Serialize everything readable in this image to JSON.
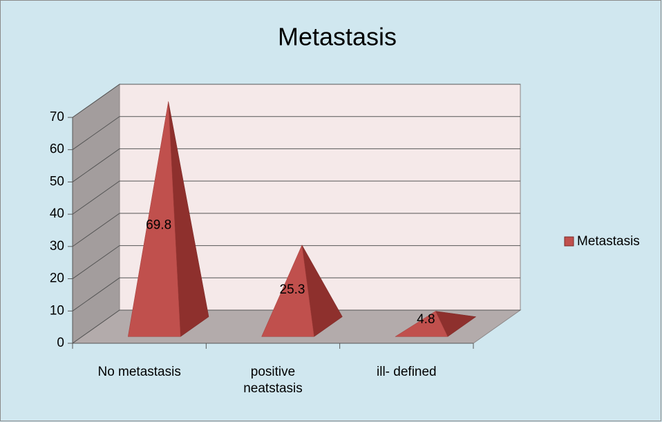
{
  "chart_data": {
    "type": "pyramid3d",
    "title": "Metastasis",
    "categories": [
      "No metastasis",
      "positive neatstasis",
      "ill- defined"
    ],
    "series": [
      {
        "name": "Metastasis",
        "color": "#c0504d",
        "values": [
          69.8,
          25.3,
          4.8
        ]
      }
    ],
    "ylim": [
      0,
      70
    ],
    "yticks": [
      0,
      10,
      20,
      30,
      40,
      50,
      60,
      70
    ],
    "grid": true,
    "legend": "right"
  }
}
